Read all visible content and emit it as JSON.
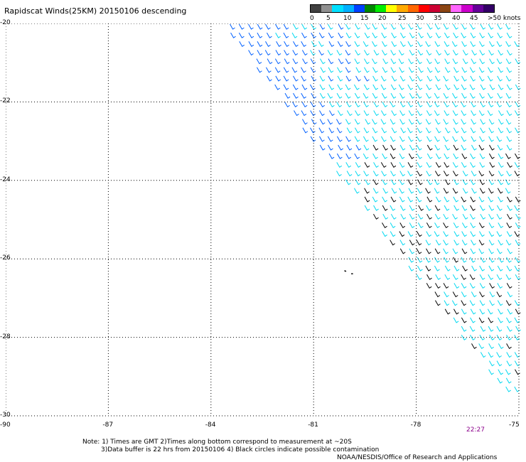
{
  "title": "Rapidscat Winds(25KM) 20150106 descending",
  "colorbar": {
    "labels": [
      "0",
      "5",
      "10",
      "15",
      "20",
      "25",
      "30",
      "35",
      "40",
      "45",
      ">50 knots"
    ],
    "colors": [
      "#404040",
      "#909090",
      "#00e0ff",
      "#00b0ff",
      "#0040ff",
      "#008800",
      "#00ee00",
      "#ffff00",
      "#ffaa00",
      "#ff6600",
      "#ff0000",
      "#cc0033",
      "#8b4513",
      "#ff66ff",
      "#cc00cc",
      "#660099",
      "#330066"
    ]
  },
  "map": {
    "lat_labels": [
      "-20",
      "-22",
      "-24",
      "-26",
      "-28",
      "-30"
    ],
    "lon_labels": [
      "-90",
      "-87",
      "-84",
      "-81",
      "-78",
      "-75"
    ],
    "lon_range": [
      -90,
      -75
    ],
    "lat_range": [
      -30,
      -20
    ],
    "wind_colors": {
      "light": "#00d8f0",
      "medium": "#0060ff",
      "calm": "#000000"
    }
  },
  "time_label": "22:27",
  "notes": [
    "Note: 1) Times are GMT 2)Times along bottom correspond to measurement at ~20S",
    "3)Data buffer is 22 hrs from 20150106 4) Black circles indicate possible contamination",
    "NOAA/NESDIS/Office of Research and Applications"
  ]
}
